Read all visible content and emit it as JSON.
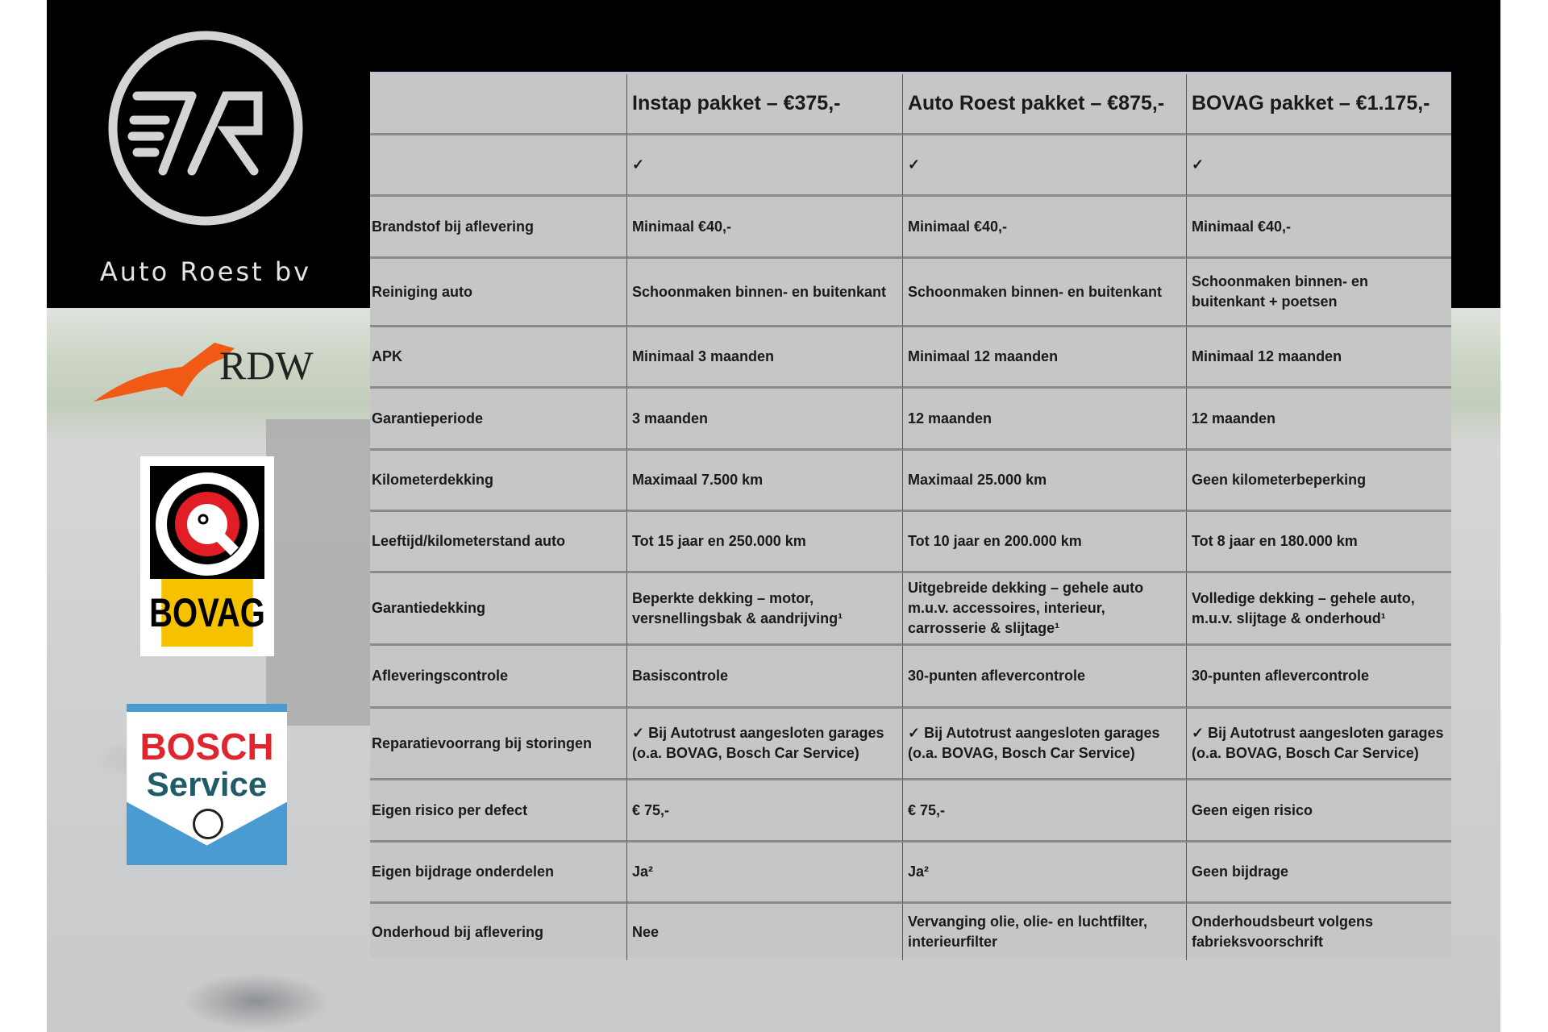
{
  "brand": {
    "name": "Auto Roest bv"
  },
  "partner_logos": [
    {
      "name": "RDW",
      "color": "#f05a14"
    },
    {
      "name": "BOVAG",
      "color": "#f6c200"
    },
    {
      "name": "BOSCH",
      "sub": "Service",
      "color": "#e0252f"
    }
  ],
  "table": {
    "headers": [
      "",
      "Instap pakket – €375,-",
      "Auto Roest pakket – €875,-",
      "BOVAG pakket – €1.175,-"
    ],
    "rows": [
      [
        "",
        "✓",
        "✓",
        "✓"
      ],
      [
        "Brandstof bij aflevering",
        "Minimaal €40,-",
        "Minimaal €40,-",
        "Minimaal €40,-"
      ],
      [
        "Reiniging auto",
        "Schoonmaken binnen- en buitenkant",
        "Schoonmaken binnen- en buitenkant",
        "Schoonmaken binnen- en buitenkant + poetsen"
      ],
      [
        "APK",
        "Minimaal 3 maanden",
        "Minimaal 12 maanden",
        "Minimaal 12 maanden"
      ],
      [
        "Garantieperiode",
        "3 maanden",
        "12 maanden",
        "12 maanden"
      ],
      [
        "Kilometerdekking",
        "Maximaal 7.500 km",
        "Maximaal 25.000 km",
        "Geen kilometerbeperking"
      ],
      [
        "Leeftijd/kilometerstand auto",
        "Tot 15 jaar en 250.000 km",
        "Tot 10 jaar en 200.000 km",
        "Tot 8 jaar en 180.000 km"
      ],
      [
        "Garantiedekking",
        "Beperkte dekking – motor, versnellingsbak & aandrijving¹",
        "Uitgebreide dekking – gehele auto m.u.v. accessoires, interieur, carrosserie & slijtage¹",
        "Volledige dekking – gehele auto, m.u.v. slijtage & onderhoud¹"
      ],
      [
        "Afleveringscontrole",
        "Basiscontrole",
        "30-punten aflevercontrole",
        "30-punten aflevercontrole"
      ],
      [
        "Reparatievoorrang bij storingen",
        "✓ Bij Autotrust aangesloten garages (o.a. BOVAG, Bosch Car Service)",
        "✓ Bij Autotrust aangesloten garages (o.a. BOVAG, Bosch Car Service)",
        "✓ Bij Autotrust aangesloten garages (o.a. BOVAG, Bosch Car Service)"
      ],
      [
        "Eigen risico per defect",
        "€ 75,-",
        "€ 75,-",
        "Geen eigen risico"
      ],
      [
        "Eigen bijdrage onderdelen",
        "Ja²",
        "Ja²",
        "Geen bijdrage"
      ],
      [
        "Onderhoud bij aflevering",
        "Nee",
        "Vervanging olie, olie- en luchtfilter, interieurfilter",
        "Onderhoudsbeurt volgens fabrieksvoorschrift"
      ]
    ]
  }
}
